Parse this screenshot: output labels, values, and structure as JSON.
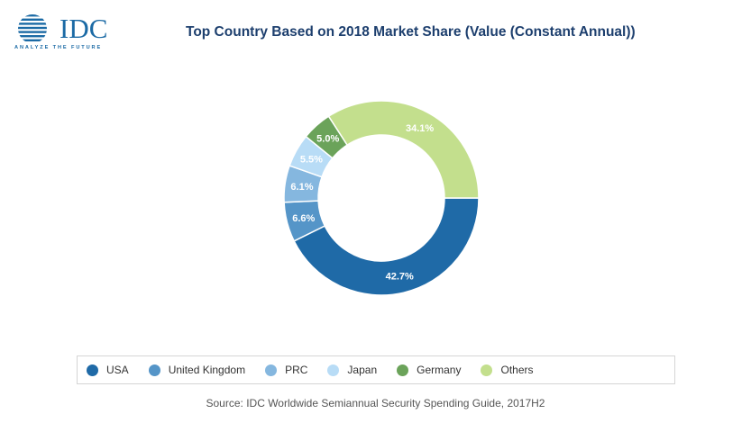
{
  "logo": {
    "name": "IDC",
    "tagline": "ANALYZE THE FUTURE"
  },
  "chart_data": {
    "type": "pie",
    "variant": "donut",
    "title": "Top Country Based on 2018 Market Share (Value (Constant Annual))",
    "categories": [
      "USA",
      "United Kingdom",
      "PRC",
      "Japan",
      "Germany",
      "Others"
    ],
    "values": [
      42.7,
      6.6,
      6.1,
      5.5,
      5.0,
      34.1
    ],
    "labels": [
      "42.7%",
      "6.6%",
      "6.1%",
      "5.5%",
      "5.0%",
      "34.1%"
    ],
    "colors": [
      "#1f6aa7",
      "#5595c8",
      "#85b7df",
      "#b8dcf6",
      "#6ba35a",
      "#c3df8d"
    ],
    "legend_position": "bottom",
    "source": "Source: IDC Worldwide Semiannual Security Spending Guide, 2017H2"
  }
}
